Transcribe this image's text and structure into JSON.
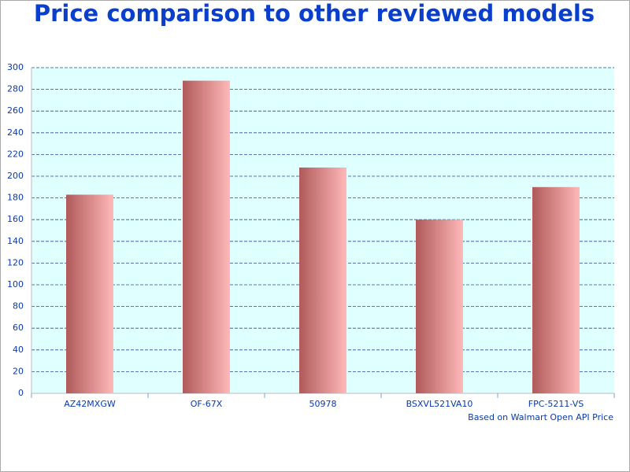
{
  "chart_data": {
    "type": "bar",
    "title": "Price comparison to other reviewed models",
    "categories": [
      "AZ42MXGW",
      "OF-67X",
      "50978",
      "BSXVL521VA10",
      "FPC-5211-VS"
    ],
    "values": [
      183,
      288,
      208,
      160,
      190
    ],
    "color": "#b05a5a",
    "color_end": "#ffb8b8",
    "ylim": [
      0,
      300
    ],
    "yticks": [
      0,
      20,
      40,
      60,
      80,
      100,
      120,
      140,
      160,
      180,
      200,
      220,
      240,
      260,
      280,
      300
    ],
    "grid": true,
    "annotation": "Based on Walmart Open API Price"
  }
}
